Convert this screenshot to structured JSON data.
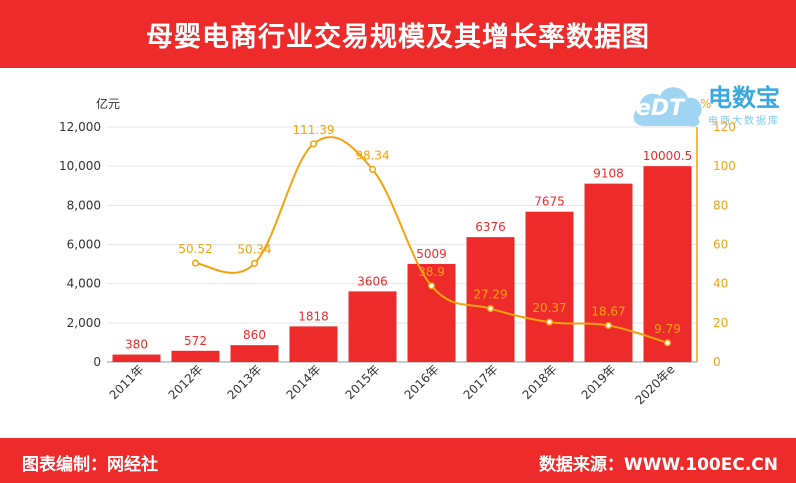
{
  "header": {
    "title": "母婴电商行业交易规模及其增长率数据图"
  },
  "footer": {
    "left": "图表编制：网经社",
    "right": "数据来源：WWW.100EC.CN"
  },
  "logo": {
    "badge": "eDT",
    "main": "电数宝",
    "sub": "电商大数据库"
  },
  "colors": {
    "bar": "#ee2b2b",
    "line": "#f5a10d",
    "header": "#ee2b2b"
  },
  "chart_data": {
    "type": "bar",
    "categories": [
      "2011年",
      "2012年",
      "2013年",
      "2014年",
      "2015年",
      "2016年",
      "2017年",
      "2018年",
      "2019年",
      "2020年e"
    ],
    "series": [
      {
        "type": "bar",
        "axis": "left",
        "values": [
          380,
          572,
          860,
          1818,
          3606,
          5009,
          6376,
          7675,
          9108,
          10000.5
        ],
        "labels": [
          "380",
          "572",
          "860",
          "1818",
          "3606",
          "5009",
          "6376",
          "7675",
          "9108",
          "10000.5"
        ]
      },
      {
        "type": "line",
        "axis": "right",
        "values": [
          null,
          50.52,
          50.34,
          111.39,
          98.34,
          38.9,
          27.29,
          20.37,
          18.67,
          9.79
        ],
        "labels": [
          "",
          "50.52",
          "50.34",
          "111.39",
          "98.34",
          "38.9",
          "27.29",
          "20.37",
          "18.67",
          "9.79"
        ]
      }
    ],
    "ylabel": "亿元",
    "y2label": "%",
    "ylim": [
      0,
      12000
    ],
    "y2lim": [
      0,
      120
    ],
    "yticks": [
      "0",
      "2,000",
      "4,000",
      "6,000",
      "8,000",
      "10,000",
      "12,000"
    ],
    "y2ticks": [
      "0",
      "20",
      "40",
      "60",
      "80",
      "100",
      "120"
    ],
    "grid": true
  }
}
